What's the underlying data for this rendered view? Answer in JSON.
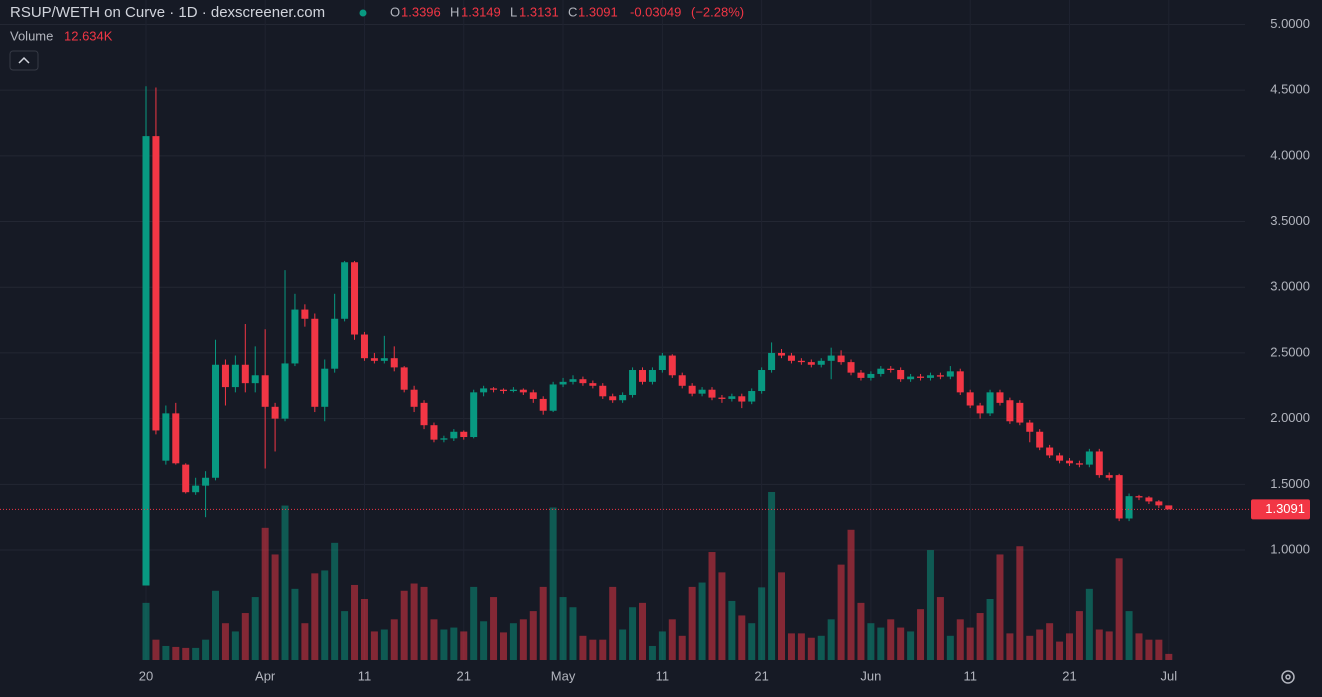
{
  "header": {
    "title": "RSUP/WETH on Curve · 1D · dexscreener.com",
    "open_key": "O",
    "high_key": "H",
    "low_key": "L",
    "close_key": "C",
    "change": -0.03049,
    "change_pct": "(−2.28%)",
    "volume_key": "Volume"
  },
  "chart_data": {
    "type": "candlestick",
    "categories": [
      "20",
      null,
      null,
      null,
      null,
      null,
      null,
      null,
      null,
      null,
      null,
      null,
      "Apr",
      null,
      null,
      null,
      null,
      null,
      null,
      null,
      null,
      null,
      "11",
      null,
      null,
      null,
      null,
      null,
      null,
      null,
      null,
      null,
      "21",
      null,
      null,
      null,
      null,
      null,
      null,
      null,
      null,
      null,
      "May",
      null,
      null,
      null,
      null,
      null,
      null,
      null,
      null,
      null,
      "11",
      null,
      null,
      null,
      null,
      null,
      null,
      null,
      null,
      null,
      "21",
      null,
      null,
      null,
      null,
      null,
      null,
      null,
      null,
      null,
      null,
      "Jun",
      null,
      null,
      null,
      null,
      null,
      null,
      null,
      null,
      null,
      "11",
      null,
      null,
      null,
      null,
      null,
      null,
      null,
      null,
      null,
      "21",
      null,
      null,
      null,
      null,
      null,
      null,
      null,
      null,
      null,
      "Jul"
    ],
    "open": [
      0.73,
      4.15,
      1.68,
      2.04,
      1.65,
      1.44,
      1.49,
      1.55,
      2.41,
      2.24,
      2.41,
      2.27,
      2.33,
      2.09,
      2.0,
      2.42,
      2.83,
      2.76,
      2.09,
      2.38,
      2.76,
      3.19,
      2.64,
      2.46,
      2.44,
      2.46,
      2.39,
      2.22,
      2.12,
      1.95,
      1.84,
      1.85,
      1.9,
      1.86,
      2.2,
      2.23,
      2.22,
      2.21,
      2.22,
      2.2,
      2.15,
      2.06,
      2.26,
      2.28,
      2.3,
      2.27,
      2.25,
      2.17,
      2.14,
      2.18,
      2.37,
      2.28,
      2.37,
      2.48,
      2.33,
      2.25,
      2.19,
      2.22,
      2.16,
      2.15,
      2.17,
      2.13,
      2.21,
      2.37,
      2.5,
      2.48,
      2.44,
      2.43,
      2.41,
      2.44,
      2.48,
      2.43,
      2.35,
      2.31,
      2.34,
      2.38,
      2.37,
      2.3,
      2.32,
      2.31,
      2.33,
      2.32,
      2.36,
      2.2,
      2.1,
      2.04,
      2.2,
      2.14,
      2.12,
      1.97,
      1.9,
      1.78,
      1.72,
      1.68,
      1.66,
      1.65,
      1.75,
      1.57,
      1.57,
      1.24,
      1.41,
      1.4,
      1.37,
      1.3396
    ],
    "high": [
      4.53,
      4.52,
      2.1,
      2.12,
      1.66,
      1.55,
      1.6,
      2.6,
      2.45,
      2.48,
      2.72,
      2.55,
      2.68,
      2.12,
      3.13,
      2.95,
      2.87,
      2.8,
      2.45,
      2.95,
      3.2,
      3.2,
      2.66,
      2.5,
      2.63,
      2.55,
      2.4,
      2.25,
      2.14,
      1.97,
      1.87,
      1.92,
      1.91,
      2.22,
      2.25,
      2.24,
      2.23,
      2.24,
      2.23,
      2.22,
      2.17,
      2.28,
      2.31,
      2.33,
      2.32,
      2.29,
      2.27,
      2.19,
      2.2,
      2.39,
      2.39,
      2.39,
      2.5,
      2.49,
      2.35,
      2.27,
      2.24,
      2.24,
      2.18,
      2.19,
      2.19,
      2.23,
      2.39,
      2.58,
      2.53,
      2.5,
      2.46,
      2.45,
      2.46,
      2.54,
      2.52,
      2.45,
      2.37,
      2.36,
      2.4,
      2.4,
      2.39,
      2.34,
      2.34,
      2.35,
      2.35,
      2.4,
      2.38,
      2.22,
      2.12,
      2.22,
      2.22,
      2.16,
      2.14,
      1.99,
      1.92,
      1.8,
      1.74,
      1.7,
      1.68,
      1.77,
      1.77,
      1.59,
      1.58,
      1.43,
      1.42,
      1.41,
      1.38,
      1.3149
    ],
    "low": [
      0.73,
      1.88,
      1.65,
      1.65,
      1.43,
      1.42,
      1.25,
      1.53,
      2.1,
      2.2,
      2.2,
      2.2,
      1.62,
      1.75,
      1.98,
      2.4,
      2.7,
      2.05,
      1.98,
      2.35,
      2.74,
      2.6,
      2.44,
      2.42,
      2.42,
      2.36,
      2.2,
      2.05,
      1.92,
      1.82,
      1.82,
      1.83,
      1.84,
      1.85,
      2.17,
      2.2,
      2.19,
      2.2,
      2.18,
      2.12,
      2.03,
      2.05,
      2.24,
      2.26,
      2.25,
      2.23,
      2.15,
      2.12,
      2.12,
      2.16,
      2.26,
      2.26,
      2.35,
      2.31,
      2.23,
      2.17,
      2.17,
      2.14,
      2.12,
      2.13,
      2.08,
      2.11,
      2.19,
      2.35,
      2.46,
      2.42,
      2.41,
      2.39,
      2.39,
      2.3,
      2.41,
      2.33,
      2.29,
      2.29,
      2.32,
      2.35,
      2.28,
      2.28,
      2.29,
      2.29,
      2.3,
      2.3,
      2.18,
      2.08,
      2.0,
      2.02,
      2.1,
      1.96,
      1.95,
      1.82,
      1.76,
      1.7,
      1.66,
      1.64,
      1.63,
      1.63,
      1.55,
      1.53,
      1.22,
      1.22,
      1.38,
      1.35,
      1.32,
      1.3131
    ],
    "close": [
      4.15,
      1.91,
      2.04,
      1.66,
      1.44,
      1.49,
      1.55,
      2.41,
      2.24,
      2.41,
      2.27,
      2.33,
      2.09,
      2.0,
      2.42,
      2.83,
      2.76,
      2.09,
      2.38,
      2.76,
      3.19,
      2.64,
      2.46,
      2.44,
      2.46,
      2.39,
      2.22,
      2.09,
      1.95,
      1.84,
      1.85,
      1.9,
      1.86,
      2.2,
      2.23,
      2.22,
      2.21,
      2.22,
      2.2,
      2.15,
      2.06,
      2.26,
      2.28,
      2.3,
      2.27,
      2.25,
      2.17,
      2.14,
      2.18,
      2.37,
      2.28,
      2.37,
      2.48,
      2.33,
      2.25,
      2.19,
      2.22,
      2.16,
      2.15,
      2.17,
      2.13,
      2.21,
      2.37,
      2.5,
      2.48,
      2.44,
      2.43,
      2.41,
      2.44,
      2.48,
      2.43,
      2.35,
      2.31,
      2.34,
      2.38,
      2.37,
      2.3,
      2.32,
      2.31,
      2.33,
      2.32,
      2.36,
      2.2,
      2.1,
      2.04,
      2.2,
      2.12,
      1.98,
      1.97,
      1.9,
      1.78,
      1.72,
      1.68,
      1.66,
      1.65,
      1.75,
      1.57,
      1.55,
      1.24,
      1.41,
      1.4,
      1.37,
      1.34,
      1.3091
    ],
    "volume": [
      118,
      42,
      29,
      27,
      25,
      25,
      42,
      143,
      76,
      59,
      97,
      130,
      273,
      218,
      319,
      147,
      76,
      179,
      185,
      242,
      101,
      155,
      126,
      59,
      63,
      84,
      143,
      158,
      151,
      84,
      63,
      67,
      59,
      151,
      80,
      130,
      57,
      76,
      84,
      101,
      151,
      315,
      130,
      109,
      50,
      42,
      42,
      151,
      63,
      109,
      118,
      29,
      59,
      84,
      50,
      151,
      160,
      223,
      181,
      122,
      92,
      76,
      150,
      347,
      181,
      55,
      55,
      46,
      50,
      84,
      197,
      269,
      118,
      76,
      67,
      84,
      67,
      59,
      105,
      227,
      130,
      50,
      84,
      67,
      97,
      126,
      218,
      55,
      235,
      50,
      63,
      76,
      38,
      55,
      101,
      147,
      63,
      59,
      210,
      101,
      55,
      42,
      42,
      12.634
    ],
    "volume_label": "12.634K",
    "up_color": "#089981",
    "down_color": "#f23645",
    "ylim": [
      0.163,
      5.186
    ],
    "yticks": [
      {
        "value": 1,
        "label": "1.0000"
      },
      {
        "value": 1.5,
        "label": "1.5000"
      },
      {
        "value": 2,
        "label": "2.0000"
      },
      {
        "value": 2.5,
        "label": "2.5000"
      },
      {
        "value": 3,
        "label": "3.0000"
      },
      {
        "value": 3.5,
        "label": "3.5000"
      },
      {
        "value": 4,
        "label": "4.0000"
      },
      {
        "value": 4.5,
        "label": "4.5000"
      },
      {
        "value": 5,
        "label": "5.0000"
      }
    ],
    "grid": true
  }
}
